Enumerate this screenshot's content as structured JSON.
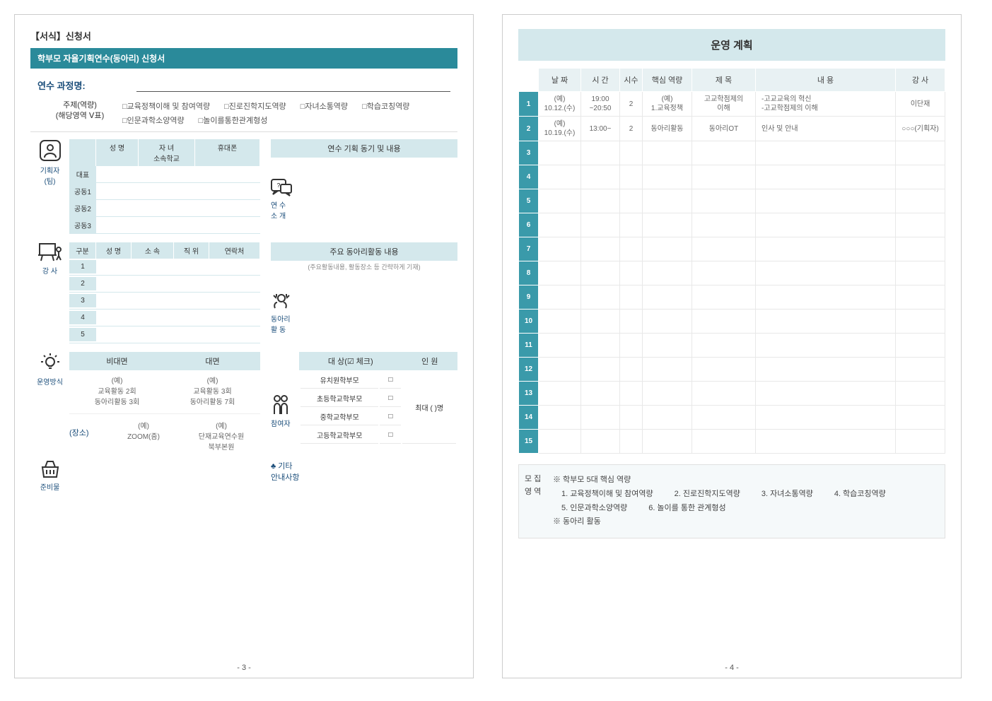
{
  "page1": {
    "form_header": "【서식】신청서",
    "title_bar": "학부모 자율기획연수(동아리) 신청서",
    "course_label": "연수 과정명:",
    "subject_label_l1": "주제(역량)",
    "subject_label_l2": "(해당영역 Ⅴ표)",
    "subject_checks": [
      "□교육정책이해 및 참여역량",
      "□진로진학지도역량",
      "□자녀소통역량",
      "□학습코칭역량",
      "□인문과학소양역량",
      "□놀이를통한관계형성"
    ],
    "planner_label": "기획자\n(팀)",
    "planner_headers": {
      "name": "성 명",
      "child": "자  녀\n소속학교",
      "phone": "휴대폰"
    },
    "planner_rows": [
      "대표",
      "공동1",
      "공동2",
      "공동3"
    ],
    "intro_header": "연수 기획 동기 및 내용",
    "intro_label": "연 수\n소 개",
    "lecturer_label": "강 사",
    "lecturer_headers": {
      "div": "구분",
      "name": "성 명",
      "aff": "소 속",
      "pos": "직 위",
      "contact": "연락처"
    },
    "lecturer_rows": [
      "1",
      "2",
      "3",
      "4",
      "5"
    ],
    "club_header": "주요 동아리활동 내용",
    "club_sub": "(주요활동내용, 활동장소 등 간략하게 기재)",
    "club_label": "동아리\n활 동",
    "op_label": "운영방식",
    "op_hdr": {
      "online": "비대면",
      "offline": "대면"
    },
    "op_body": {
      "online_ex": "(예)",
      "online": "교육활동 2회\n동아리활동 3회",
      "offline_ex": "(예)",
      "offline": "교육활동 3회\n동아리활동 7회"
    },
    "place_label": "(장소)",
    "place": {
      "online_ex": "(예)",
      "online": "ZOOM(줌)",
      "offline_ex": "(예)",
      "offline": "단재교육연수원\n북부본원"
    },
    "target_hdr": {
      "target": "대 상(☑ 체크)",
      "count": "인 원"
    },
    "targets": [
      "유치원학부모",
      "초등학교학부모",
      "중학교학부모",
      "고등학교학부모"
    ],
    "target_count": "최대 (        )명",
    "participant_label": "참여자",
    "prep_label": "준비물",
    "etc_label": "♣ 기타\n안내사항",
    "page_num": "- 3 -"
  },
  "page2": {
    "plan_title": "운영 계획",
    "headers": [
      "날 짜",
      "시 간",
      "시수",
      "핵심 역량",
      "제 목",
      "내 용",
      "강 사"
    ],
    "rows": [
      {
        "n": "1",
        "date": "(예)\n10.12.(수)",
        "time": "19:00\n~20:50",
        "hours": "2",
        "comp": "(예)\n1.교육정책",
        "title": "고교학점제의\n이해",
        "content": "-고교교육의 혁신\n-고교학점제의 이해",
        "lect": "이단재"
      },
      {
        "n": "2",
        "date": "(예)\n10.19.(수)",
        "time": "13:00~",
        "hours": "2",
        "comp": "동아리활동",
        "title": "동아리OT",
        "content": "인사 및 안내",
        "lect": "○○○(기획자)"
      },
      {
        "n": "3"
      },
      {
        "n": "4"
      },
      {
        "n": "5"
      },
      {
        "n": "6"
      },
      {
        "n": "7"
      },
      {
        "n": "8"
      },
      {
        "n": "9"
      },
      {
        "n": "10"
      },
      {
        "n": "11"
      },
      {
        "n": "12"
      },
      {
        "n": "13"
      },
      {
        "n": "14"
      },
      {
        "n": "15"
      }
    ],
    "recruit_label": "모 집\n영 역",
    "recruit_title": "※ 학부모 5대 핵심 역량",
    "recruit_items": [
      "1. 교육정책이해 및 참여역량",
      "2. 진로진학지도역량",
      "3. 자녀소통역량",
      "4. 학습코칭역량",
      "5. 인문과학소양역량",
      "6. 놀이를 통한 관계형성"
    ],
    "recruit_footer": "※ 동아리 활동",
    "page_num": "- 4 -"
  },
  "colors": {
    "teal": "#2a8a9a",
    "light_teal": "#d4e8ec",
    "header_teal": "#3a9aaa"
  }
}
